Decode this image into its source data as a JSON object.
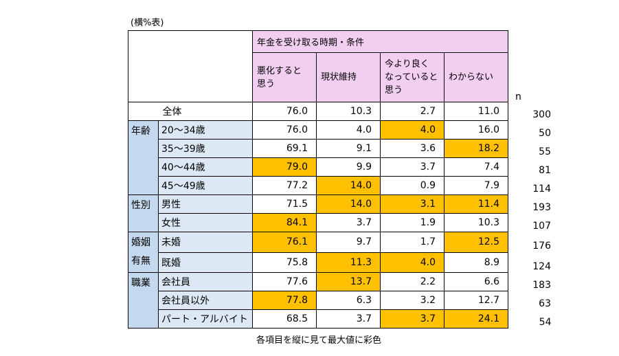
{
  "note": "(横%表)",
  "footnote": "各項目を縦に見て最大値に彩色",
  "highlight_color": "#ffc000",
  "chart_data": {
    "type": "table",
    "header_group": "年金を受け取る時期・条件",
    "columns": [
      "悪化すると思う",
      "現状維持",
      "今より良くなっていると思う",
      "わからない"
    ],
    "n_label": "n",
    "rows": [
      {
        "group": "",
        "label": "全体",
        "values": [
          "76.0",
          "10.3",
          "2.7",
          "11.0"
        ],
        "n": "300",
        "hl": [
          false,
          false,
          false,
          false
        ]
      },
      {
        "group": "年齢",
        "label": "20～34歳",
        "values": [
          "76.0",
          "4.0",
          "4.0",
          "16.0"
        ],
        "n": "50",
        "hl": [
          false,
          false,
          true,
          false
        ]
      },
      {
        "group": "年齢",
        "label": "35～39歳",
        "values": [
          "69.1",
          "9.1",
          "3.6",
          "18.2"
        ],
        "n": "55",
        "hl": [
          false,
          false,
          false,
          true
        ]
      },
      {
        "group": "年齢",
        "label": "40～44歳",
        "values": [
          "79.0",
          "9.9",
          "3.7",
          "7.4"
        ],
        "n": "81",
        "hl": [
          true,
          false,
          false,
          false
        ]
      },
      {
        "group": "年齢",
        "label": "45～49歳",
        "values": [
          "77.2",
          "14.0",
          "0.9",
          "7.9"
        ],
        "n": "114",
        "hl": [
          false,
          true,
          false,
          false
        ]
      },
      {
        "group": "性別",
        "label": "男性",
        "values": [
          "71.5",
          "14.0",
          "3.1",
          "11.4"
        ],
        "n": "193",
        "hl": [
          false,
          true,
          true,
          true
        ]
      },
      {
        "group": "性別",
        "label": "女性",
        "values": [
          "84.1",
          "3.7",
          "1.9",
          "10.3"
        ],
        "n": "107",
        "hl": [
          true,
          false,
          false,
          false
        ]
      },
      {
        "group": "婚姻有無",
        "label": "未婚",
        "values": [
          "76.1",
          "9.7",
          "1.7",
          "12.5"
        ],
        "n": "176",
        "hl": [
          true,
          false,
          false,
          true
        ]
      },
      {
        "group": "婚姻有無",
        "label": "既婚",
        "values": [
          "75.8",
          "11.3",
          "4.0",
          "8.9"
        ],
        "n": "124",
        "hl": [
          false,
          true,
          true,
          false
        ]
      },
      {
        "group": "職業",
        "label": "会社員",
        "values": [
          "77.6",
          "13.7",
          "2.2",
          "6.6"
        ],
        "n": "183",
        "hl": [
          false,
          true,
          false,
          false
        ]
      },
      {
        "group": "職業",
        "label": "会社員以外",
        "values": [
          "77.8",
          "6.3",
          "3.2",
          "12.7"
        ],
        "n": "63",
        "hl": [
          true,
          false,
          false,
          false
        ]
      },
      {
        "group": "職業",
        "label": "パート・アルバイト",
        "values": [
          "68.5",
          "3.7",
          "3.7",
          "24.1"
        ],
        "n": "54",
        "hl": [
          false,
          false,
          true,
          true
        ]
      }
    ],
    "groups": [
      {
        "name": "年齢",
        "lines": [
          "年齢"
        ],
        "span": 4
      },
      {
        "name": "性別",
        "lines": [
          "性別"
        ],
        "span": 2
      },
      {
        "name": "婚姻有無",
        "lines": [
          "婚姻",
          "有無"
        ],
        "span": 2
      },
      {
        "name": "職業",
        "lines": [
          "職業"
        ],
        "span": 3
      }
    ],
    "header_lines": [
      [
        "悪化すると",
        "思う"
      ],
      [
        "現状維持"
      ],
      [
        "今より良く",
        "なっていると",
        "思う"
      ],
      [
        "わからない"
      ]
    ]
  }
}
